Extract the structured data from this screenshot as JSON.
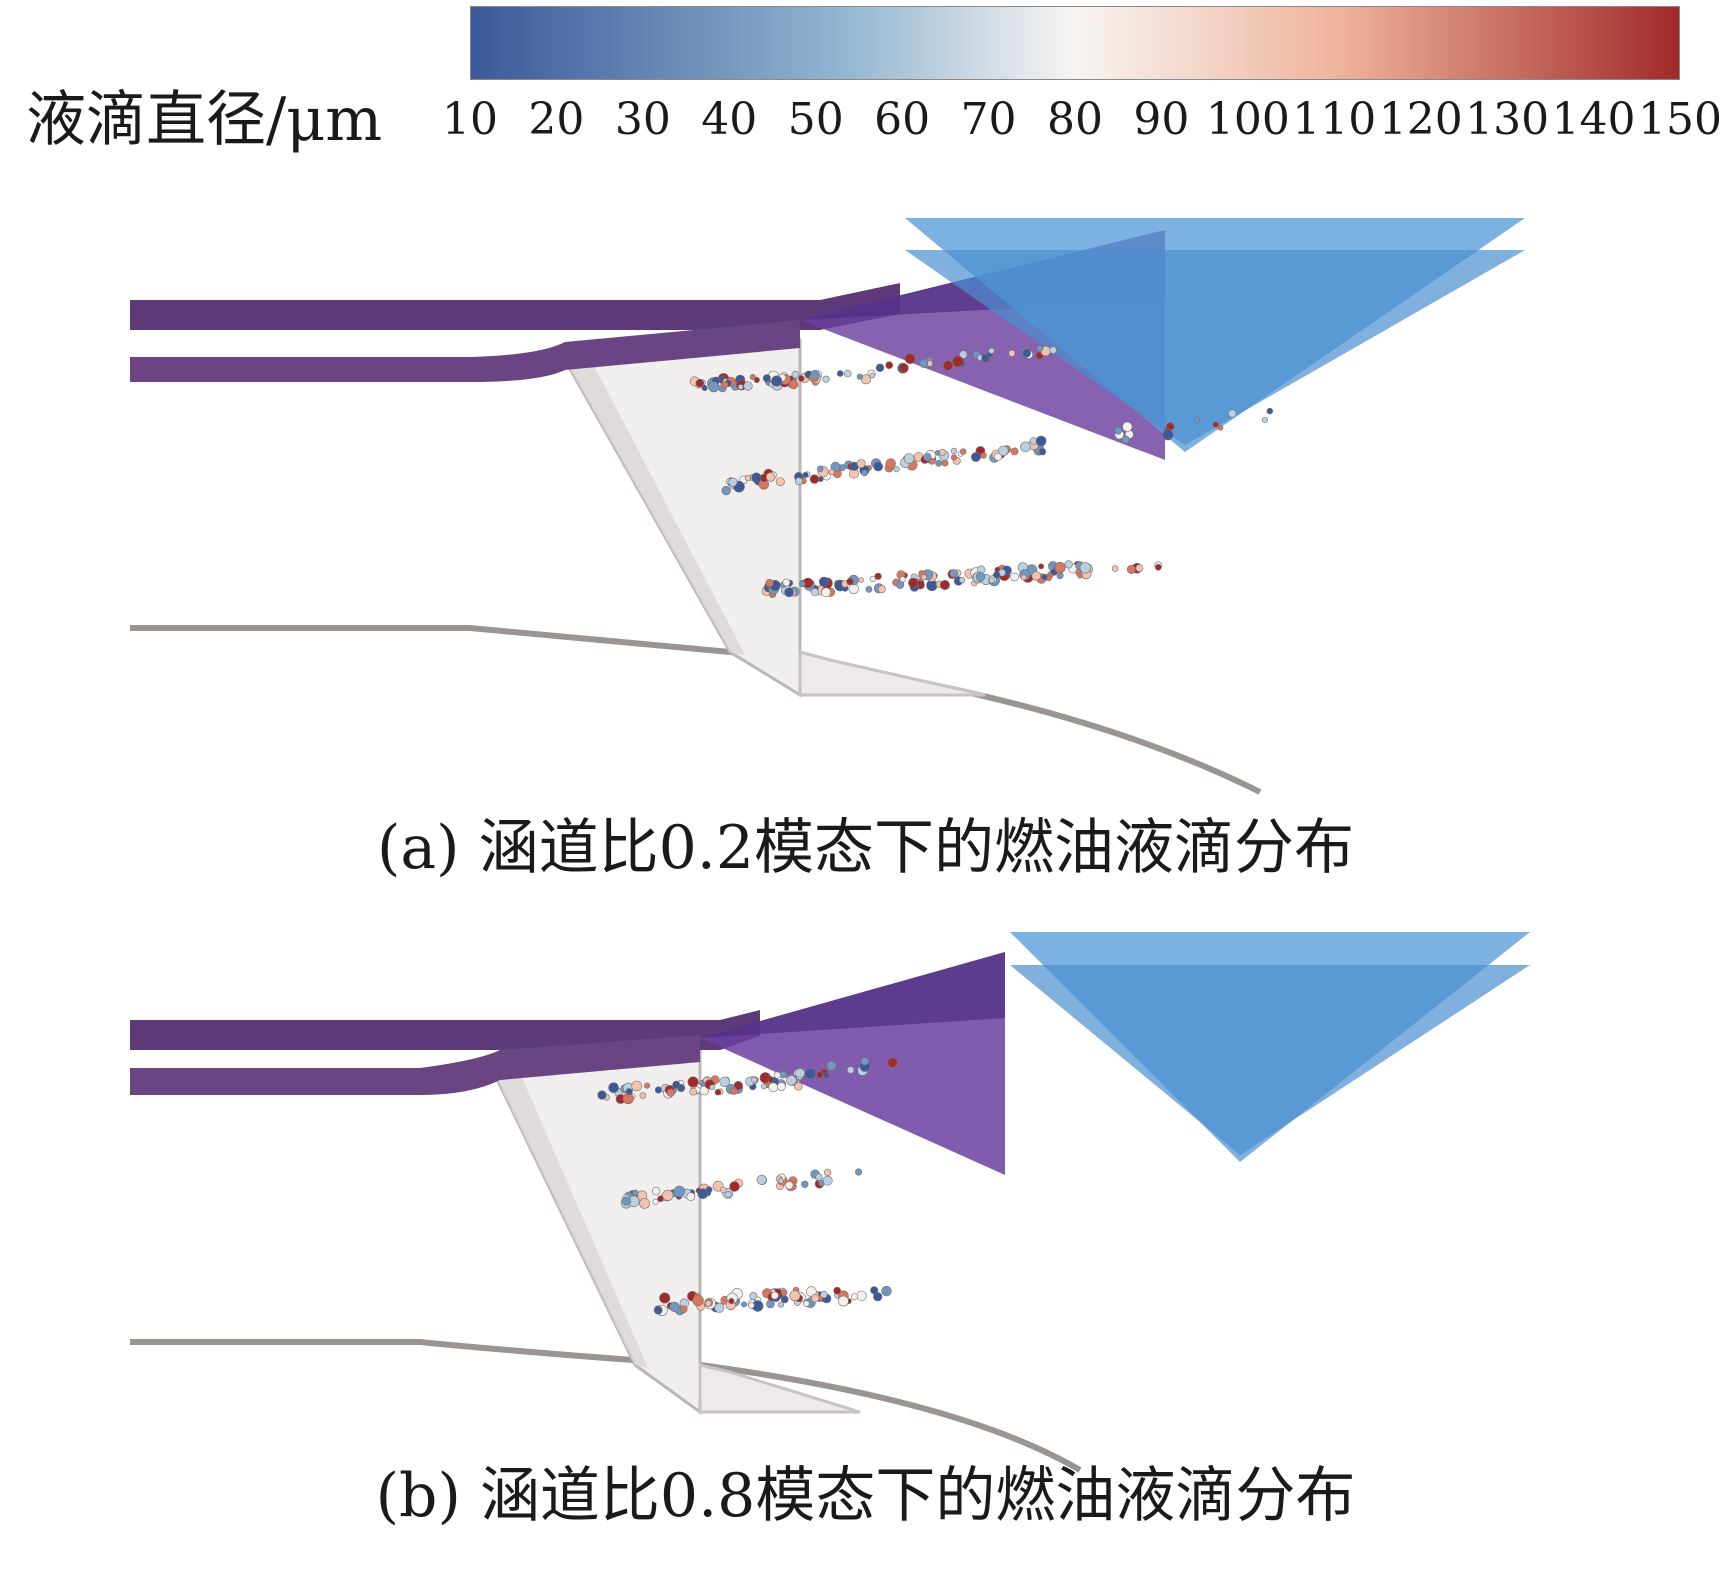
{
  "legend": {
    "title": "液滴直径/μm",
    "ticks": [
      "10",
      "20",
      "30",
      "40",
      "50",
      "60",
      "70",
      "80",
      "90",
      "100",
      "110",
      "120",
      "130",
      "140",
      "150"
    ],
    "colors": {
      "low": "#3b5998",
      "mid": "#f7f4f2",
      "high": "#a12a2a"
    }
  },
  "panels": [
    {
      "caption": "(a) 涵道比0.2模态下的燃油液滴分布"
    },
    {
      "caption": "(b) 涵道比0.8模态下的燃油液滴分布"
    }
  ],
  "colors": {
    "duct_purple": "#5e3a78",
    "flameholder_purple": "#6b3fa0",
    "wedge_blue": "#5c9ed9",
    "housing_grey": "#9a9493"
  }
}
